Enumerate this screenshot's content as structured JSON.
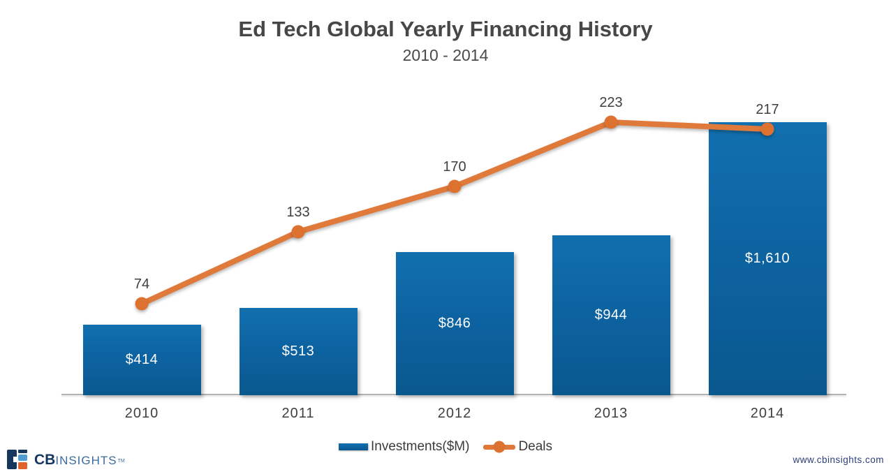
{
  "title": "Ed Tech Global Yearly Financing History",
  "subtitle": "2010 - 2014",
  "chart_data": {
    "type": "bar",
    "subtype": "bar-with-line-overlay",
    "categories": [
      "2010",
      "2011",
      "2012",
      "2013",
      "2014"
    ],
    "series": [
      {
        "name": "Investments($M)",
        "type": "bar",
        "values": [
          414,
          513,
          846,
          944,
          1610
        ],
        "labels": [
          "$414",
          "$513",
          "$846",
          "$944",
          "$1,610"
        ],
        "color_top": "#1270af",
        "color_bottom": "#09588f",
        "label_color": "#ffffff"
      },
      {
        "name": "Deals",
        "type": "line",
        "values": [
          74,
          133,
          170,
          223,
          217
        ],
        "labels": [
          "74",
          "133",
          "170",
          "223",
          "217"
        ],
        "color": "#e07a3a",
        "marker_color": "#dd7230",
        "label_color": "#3f3f3f"
      }
    ],
    "title": "Ed Tech Global Yearly Financing History",
    "xlabel": "",
    "ylabel": "",
    "y_axis_visible": false,
    "gridlines": false,
    "legend_position": "bottom"
  },
  "legend": {
    "investments_label": "Investments($M)",
    "deals_label": "Deals"
  },
  "footer": {
    "logo_cb": "CB",
    "logo_insights": "INSIGHTS",
    "logo_tm": "TM",
    "website": "www.cbinsights.com"
  },
  "colors": {
    "bar_blue": "#0d63a1",
    "line_orange": "#e07a3a",
    "title_gray": "#474747",
    "axis_gray": "#b3b2b1",
    "logo_navy": "#17365d",
    "logo_light_blue": "#4f9dd3",
    "logo_orange": "#e0622d",
    "url_navy": "#2c4077"
  }
}
